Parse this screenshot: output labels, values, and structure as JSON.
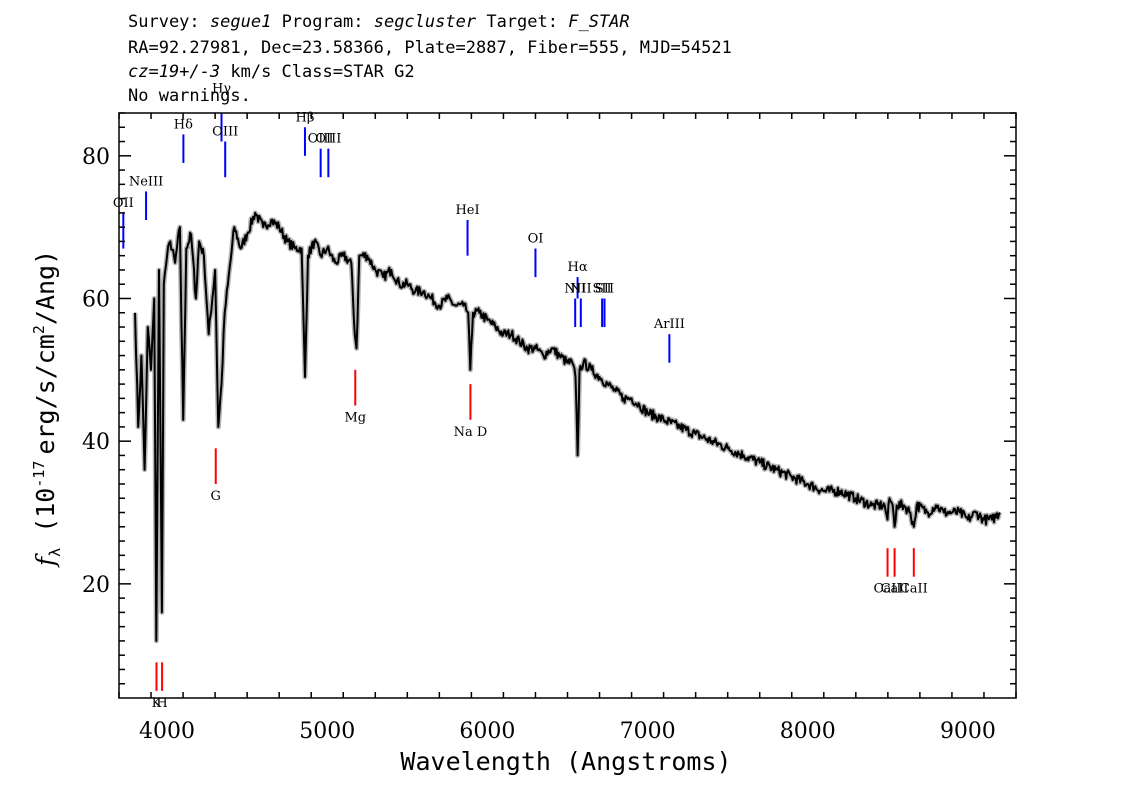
{
  "header": {
    "survey_label": "Survey:",
    "survey": "segue1",
    "program_label": "Program:",
    "program": "segcluster",
    "target_label": "Target:",
    "target": "F_STAR",
    "line2": "RA=92.27981, Dec=23.58366, Plate=2887, Fiber=555, MJD=54521",
    "cz": "cz=19+/-3",
    "cz_rest": "km/s Class=STAR G2",
    "line4": "No warnings."
  },
  "chart_data": {
    "type": "line",
    "title": "",
    "xlabel": "Wavelength (Angstroms)",
    "ylabel_symbol": "f",
    "ylabel_subscript": "λ",
    "ylabel_open": "(10",
    "ylabel_exponent": "-17",
    "ylabel_units": "erg/s/cm",
    "ylabel_squared": "2",
    "ylabel_close": "/Ang)",
    "xlim": [
      3700,
      9300
    ],
    "ylim": [
      4,
      86
    ],
    "xticks": [
      4000,
      5000,
      6000,
      7000,
      8000,
      9000
    ],
    "yticks": [
      20,
      40,
      60,
      80
    ],
    "colors": {
      "flux": "#000000",
      "error_band": "#b4b4b4",
      "emission": "#0000ff",
      "absorption": "#ff0000"
    },
    "spectrum": {
      "x": [
        3800,
        3820,
        3840,
        3860,
        3880,
        3900,
        3920,
        3933,
        3950,
        3968,
        3980,
        4000,
        4020,
        4050,
        4080,
        4101,
        4120,
        4150,
        4180,
        4200,
        4230,
        4260,
        4300,
        4320,
        4340,
        4360,
        4380,
        4420,
        4460,
        4500,
        4550,
        4600,
        4650,
        4700,
        4750,
        4800,
        4840,
        4861,
        4880,
        4920,
        4960,
        5000,
        5050,
        5100,
        5150,
        5172,
        5183,
        5200,
        5250,
        5300,
        5350,
        5400,
        5450,
        5500,
        5550,
        5600,
        5650,
        5700,
        5750,
        5800,
        5850,
        5880,
        5893,
        5910,
        5950,
        6000,
        6050,
        6100,
        6150,
        6200,
        6250,
        6300,
        6350,
        6400,
        6450,
        6500,
        6530,
        6550,
        6563,
        6575,
        6600,
        6650,
        6700,
        6750,
        6800,
        6850,
        6900,
        6950,
        7000,
        7100,
        7200,
        7300,
        7400,
        7500,
        7600,
        7700,
        7800,
        7900,
        8000,
        8100,
        8200,
        8300,
        8400,
        8480,
        8498,
        8510,
        8530,
        8542,
        8555,
        8600,
        8640,
        8662,
        8680,
        8750,
        8800,
        8850,
        8900,
        8950,
        9000,
        9050,
        9100,
        9150,
        9200
      ],
      "y": [
        58,
        42,
        52,
        36,
        56,
        50,
        60,
        12,
        64,
        16,
        62,
        66,
        68,
        65,
        70,
        43,
        67,
        69,
        60,
        68,
        66,
        55,
        64,
        42,
        48,
        58,
        62,
        70,
        67,
        69,
        72,
        70,
        71,
        70,
        68,
        67,
        67,
        49,
        66,
        68,
        66,
        67,
        65,
        66,
        65,
        55,
        53,
        66,
        66,
        64,
        63,
        64,
        62,
        62,
        61,
        61,
        60,
        59,
        60,
        59,
        59,
        58,
        50,
        58,
        58,
        57,
        56,
        55,
        55,
        54,
        53,
        53,
        52,
        53,
        52,
        51,
        51,
        49,
        38,
        50,
        51,
        50,
        49,
        48,
        47,
        46,
        46,
        45,
        44,
        43,
        42,
        41,
        40,
        39,
        38,
        37,
        36,
        35,
        34,
        33,
        33,
        32,
        31,
        31,
        29,
        32,
        31,
        28,
        31,
        31,
        30,
        28,
        31,
        30,
        31,
        30,
        30,
        30,
        29,
        30,
        29,
        29,
        30
      ]
    },
    "emission_lines": [
      {
        "label": "OII",
        "wave": 3727,
        "y1": 67,
        "y2": 72
      },
      {
        "label": "NeIII",
        "wave": 3869,
        "y1": 71,
        "y2": 75
      },
      {
        "label": "Hδ",
        "wave": 4102,
        "y1": 79,
        "y2": 83
      },
      {
        "label": "Hγ",
        "wave": 4340,
        "y1": 82,
        "y2": 88
      },
      {
        "label": "OIII",
        "wave": 4363,
        "y1": 77,
        "y2": 82
      },
      {
        "label": "Hβ",
        "wave": 4861,
        "y1": 80,
        "y2": 84
      },
      {
        "label": "OIII",
        "wave": 4959,
        "y1": 77,
        "y2": 81
      },
      {
        "label": "OIII",
        "wave": 5007,
        "y1": 77,
        "y2": 81
      },
      {
        "label": "HeI",
        "wave": 5876,
        "y1": 66,
        "y2": 71
      },
      {
        "label": "OI",
        "wave": 6300,
        "y1": 63,
        "y2": 67
      },
      {
        "label": "NII",
        "wave": 6548,
        "y1": 56,
        "y2": 60
      },
      {
        "label": "Hα",
        "wave": 6563,
        "y1": 60,
        "y2": 63
      },
      {
        "label": "NII",
        "wave": 6583,
        "y1": 56,
        "y2": 60
      },
      {
        "label": "SII",
        "wave": 6716,
        "y1": 56,
        "y2": 60
      },
      {
        "label": "SII",
        "wave": 6731,
        "y1": 56,
        "y2": 60
      },
      {
        "label": "ArIII",
        "wave": 7136,
        "y1": 51,
        "y2": 55
      }
    ],
    "absorption_lines": [
      {
        "label": "K",
        "wave": 3934,
        "y1": 5,
        "y2": 9
      },
      {
        "label": "H",
        "wave": 3969,
        "y1": 5,
        "y2": 9
      },
      {
        "label": "G",
        "wave": 4304,
        "y1": 34,
        "y2": 39
      },
      {
        "label": "Mg",
        "wave": 5175,
        "y1": 45,
        "y2": 50
      },
      {
        "label": "Na D",
        "wave": 5894,
        "y1": 43,
        "y2": 48
      },
      {
        "label": "CaII",
        "wave": 8498,
        "y1": 21,
        "y2": 25
      },
      {
        "label": "CaII",
        "wave": 8542,
        "y1": 21,
        "y2": 25
      },
      {
        "label": "CaII",
        "wave": 8662,
        "y1": 21,
        "y2": 25
      }
    ]
  }
}
